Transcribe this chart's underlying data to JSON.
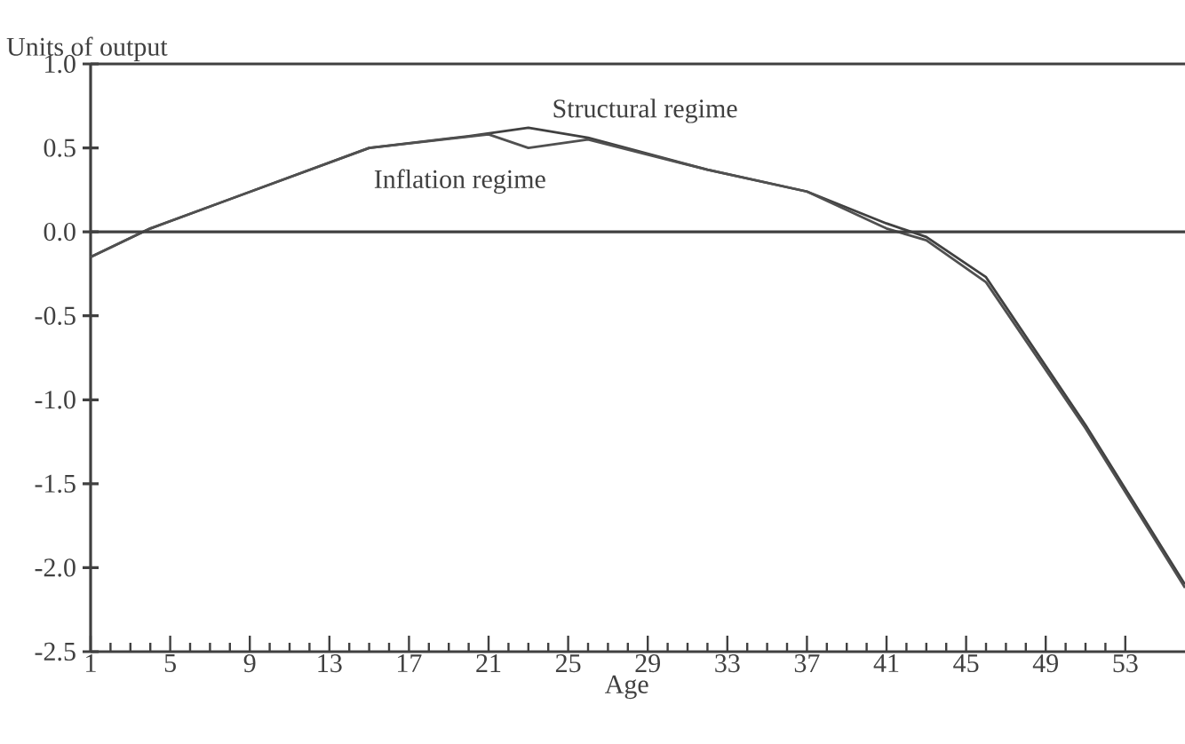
{
  "chart_data": {
    "type": "line",
    "xlabel": "Age",
    "ylabel": "Units of output",
    "xlim": [
      1,
      56
    ],
    "ylim": [
      -2.5,
      1.0
    ],
    "xticks": [
      1,
      5,
      9,
      13,
      17,
      21,
      25,
      29,
      33,
      37,
      41,
      45,
      49,
      53
    ],
    "yticks": [
      {
        "value": -2.5,
        "label": "-2.5"
      },
      {
        "value": -2.0,
        "label": "-2.0"
      },
      {
        "value": -1.5,
        "label": "-1.5"
      },
      {
        "value": -1.0,
        "label": "-1.0"
      },
      {
        "value": -0.5,
        "label": "-0.5"
      },
      {
        "value": 0.0,
        "label": "0.0"
      },
      {
        "value": 0.5,
        "label": "0.5"
      },
      {
        "value": 1.0,
        "label": "1.0"
      }
    ],
    "series": [
      {
        "name": "Structural regime",
        "color": "#404040",
        "x": [
          1,
          4,
          15,
          20,
          23,
          26,
          32,
          37,
          41,
          43,
          46,
          51,
          56
        ],
        "values": [
          -0.15,
          0.02,
          0.5,
          0.57,
          0.62,
          0.56,
          0.37,
          0.24,
          0.05,
          -0.03,
          -0.27,
          -1.15,
          -2.1
        ]
      },
      {
        "name": "Inflation regime",
        "color": "#505050",
        "x": [
          1,
          4,
          15,
          21,
          23,
          26,
          32,
          37,
          41,
          43,
          46,
          51,
          56
        ],
        "values": [
          -0.15,
          0.02,
          0.5,
          0.58,
          0.5,
          0.55,
          0.37,
          0.24,
          0.02,
          -0.05,
          -0.3,
          -1.17,
          -2.12
        ]
      }
    ],
    "ref_lines": [
      {
        "axis": "y",
        "value": 0.0,
        "color": "#404040"
      }
    ],
    "grid": false,
    "legend": false,
    "line_style": "solid",
    "marker": "none"
  }
}
